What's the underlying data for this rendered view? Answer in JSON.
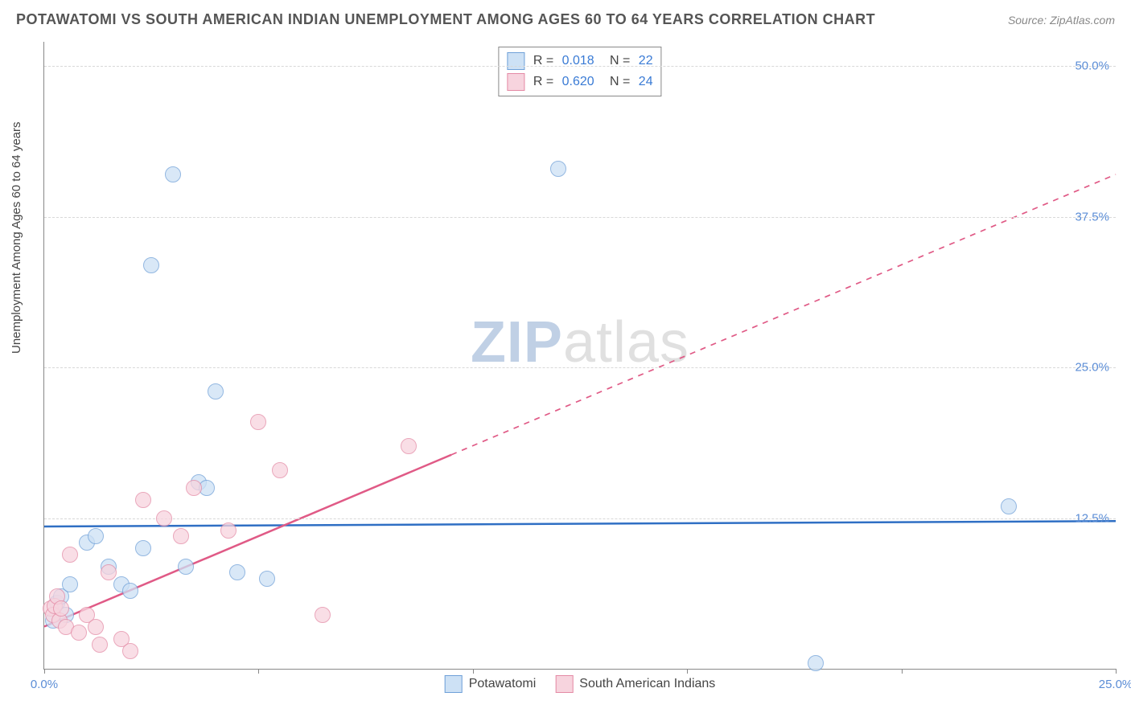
{
  "title": "POTAWATOMI VS SOUTH AMERICAN INDIAN UNEMPLOYMENT AMONG AGES 60 TO 64 YEARS CORRELATION CHART",
  "source": "Source: ZipAtlas.com",
  "y_axis_label": "Unemployment Among Ages 60 to 64 years",
  "watermark_zip": "ZIP",
  "watermark_atlas": "atlas",
  "chart": {
    "type": "scatter",
    "xlim": [
      0,
      25
    ],
    "ylim": [
      0,
      52
    ],
    "x_ticks": [
      0,
      5,
      10,
      15,
      20,
      25
    ],
    "x_tick_labels": [
      "0.0%",
      "",
      "",
      "",
      "",
      "25.0%"
    ],
    "y_ticks": [
      12.5,
      25.0,
      37.5,
      50.0
    ],
    "y_tick_labels": [
      "12.5%",
      "25.0%",
      "37.5%",
      "50.0%"
    ],
    "background_color": "#ffffff",
    "grid_color": "#d8d8d8",
    "axis_color": "#888888",
    "point_radius": 9,
    "point_stroke_width": 1.5,
    "series": [
      {
        "name": "Potawatomi",
        "fill": "#cde1f5",
        "stroke": "#6fa0d8",
        "fill_opacity": 0.75,
        "line_color": "#2f6fc4",
        "line_width": 2.5,
        "trend": {
          "x1": 0,
          "y1": 11.8,
          "x2": 25,
          "y2": 12.25
        },
        "dashed_from_x": null,
        "R": "0.018",
        "N": "22",
        "points": [
          [
            0.2,
            4.0
          ],
          [
            0.3,
            5.5
          ],
          [
            0.4,
            6.0
          ],
          [
            0.5,
            4.5
          ],
          [
            0.6,
            7.0
          ],
          [
            1.0,
            10.5
          ],
          [
            1.2,
            11.0
          ],
          [
            1.5,
            8.5
          ],
          [
            1.8,
            7.0
          ],
          [
            2.0,
            6.5
          ],
          [
            2.3,
            10.0
          ],
          [
            2.5,
            33.5
          ],
          [
            3.0,
            41.0
          ],
          [
            3.3,
            8.5
          ],
          [
            3.6,
            15.5
          ],
          [
            3.8,
            15.0
          ],
          [
            4.0,
            23.0
          ],
          [
            4.5,
            8.0
          ],
          [
            5.2,
            7.5
          ],
          [
            12.0,
            41.5
          ],
          [
            18.0,
            0.5
          ],
          [
            22.5,
            13.5
          ]
        ]
      },
      {
        "name": "South American Indians",
        "fill": "#f7d4de",
        "stroke": "#e48aa5",
        "fill_opacity": 0.75,
        "line_color": "#e05a86",
        "line_width": 2.5,
        "trend": {
          "x1": 0,
          "y1": 3.5,
          "x2": 25,
          "y2": 41.0
        },
        "dashed_from_x": 9.5,
        "R": "0.620",
        "N": "24",
        "points": [
          [
            0.15,
            5.0
          ],
          [
            0.2,
            4.5
          ],
          [
            0.25,
            5.2
          ],
          [
            0.3,
            6.0
          ],
          [
            0.35,
            4.0
          ],
          [
            0.4,
            5.0
          ],
          [
            0.5,
            3.5
          ],
          [
            0.6,
            9.5
          ],
          [
            0.8,
            3.0
          ],
          [
            1.0,
            4.5
          ],
          [
            1.2,
            3.5
          ],
          [
            1.3,
            2.0
          ],
          [
            1.5,
            8.0
          ],
          [
            1.8,
            2.5
          ],
          [
            2.0,
            1.5
          ],
          [
            2.3,
            14.0
          ],
          [
            2.8,
            12.5
          ],
          [
            3.2,
            11.0
          ],
          [
            3.5,
            15.0
          ],
          [
            4.3,
            11.5
          ],
          [
            5.0,
            20.5
          ],
          [
            5.5,
            16.5
          ],
          [
            6.5,
            4.5
          ],
          [
            8.5,
            18.5
          ]
        ]
      }
    ]
  },
  "legend_top": {
    "r_label": "R",
    "n_label": "N",
    "eq": "="
  },
  "legend_bottom": [
    {
      "label": "Potawatomi",
      "fill": "#cde1f5",
      "stroke": "#6fa0d8"
    },
    {
      "label": "South American Indians",
      "fill": "#f7d4de",
      "stroke": "#e48aa5"
    }
  ],
  "colors": {
    "title_text": "#555555",
    "source_text": "#888888",
    "tick_text": "#5b8dd6",
    "legend_value": "#3a7bd5",
    "legend_text": "#444444"
  }
}
